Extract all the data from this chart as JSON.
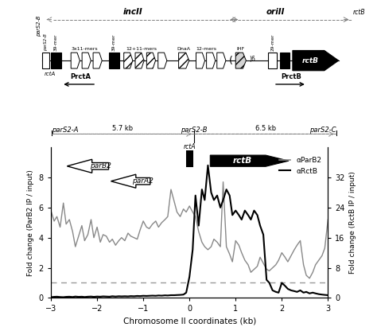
{
  "parb2_color": "#888888",
  "rctb_color": "#000000",
  "xlim": [
    -3,
    3
  ],
  "ylim_left": [
    0,
    10
  ],
  "ylim_right": [
    0,
    40
  ],
  "yticks_left": [
    0,
    2,
    4,
    6,
    8
  ],
  "yticks_right": [
    0,
    8,
    16,
    24,
    32
  ],
  "xlabel": "Chromosome II coordinates (kb)",
  "ylabel_left": "Fold change (ParB2 IP / input)",
  "ylabel_right": "Fold change (RctB IP / input)",
  "legend_parb2": "αParB2",
  "legend_rctb": "αRctB",
  "parb2_x": [
    -3.0,
    -2.93,
    -2.87,
    -2.8,
    -2.73,
    -2.67,
    -2.6,
    -2.53,
    -2.47,
    -2.4,
    -2.33,
    -2.27,
    -2.2,
    -2.13,
    -2.07,
    -2.0,
    -1.93,
    -1.87,
    -1.8,
    -1.73,
    -1.67,
    -1.6,
    -1.53,
    -1.47,
    -1.4,
    -1.33,
    -1.27,
    -1.2,
    -1.13,
    -1.07,
    -1.0,
    -0.93,
    -0.87,
    -0.8,
    -0.73,
    -0.67,
    -0.6,
    -0.53,
    -0.47,
    -0.4,
    -0.33,
    -0.27,
    -0.2,
    -0.13,
    -0.07,
    0.0,
    0.07,
    0.13,
    0.2,
    0.27,
    0.33,
    0.4,
    0.47,
    0.53,
    0.6,
    0.67,
    0.73,
    0.8,
    0.87,
    0.93,
    1.0,
    1.07,
    1.13,
    1.2,
    1.27,
    1.33,
    1.4,
    1.47,
    1.53,
    1.6,
    1.67,
    1.73,
    1.8,
    1.87,
    1.93,
    2.0,
    2.07,
    2.13,
    2.2,
    2.27,
    2.33,
    2.4,
    2.47,
    2.53,
    2.6,
    2.67,
    2.73,
    2.8,
    2.87,
    2.93,
    3.0
  ],
  "parb2_y": [
    5.8,
    5.1,
    5.4,
    4.7,
    6.3,
    4.9,
    5.2,
    4.4,
    3.4,
    4.1,
    4.8,
    3.8,
    4.2,
    5.2,
    4.0,
    4.7,
    3.7,
    4.2,
    4.1,
    3.7,
    3.9,
    3.5,
    3.8,
    4.0,
    3.8,
    4.3,
    4.1,
    4.0,
    3.9,
    4.5,
    5.1,
    4.7,
    4.6,
    4.9,
    5.1,
    4.7,
    5.0,
    5.2,
    5.4,
    7.2,
    6.4,
    5.7,
    5.4,
    5.9,
    5.7,
    6.1,
    5.7,
    5.4,
    4.4,
    3.7,
    3.4,
    3.2,
    3.4,
    3.9,
    3.7,
    3.4,
    7.7,
    3.4,
    2.9,
    2.4,
    3.8,
    3.5,
    3.0,
    2.5,
    2.2,
    1.7,
    1.9,
    2.1,
    2.7,
    2.3,
    1.9,
    1.8,
    2.0,
    2.2,
    2.5,
    3.0,
    2.7,
    2.4,
    2.8,
    3.2,
    3.5,
    3.8,
    2.2,
    1.5,
    1.3,
    1.7,
    2.2,
    2.5,
    2.8,
    3.3,
    5.2
  ],
  "rctb_x": [
    -3.0,
    -2.93,
    -2.87,
    -2.8,
    -2.73,
    -2.67,
    -2.6,
    -2.53,
    -2.47,
    -2.4,
    -2.33,
    -2.27,
    -2.2,
    -2.13,
    -2.07,
    -2.0,
    -1.93,
    -1.87,
    -1.8,
    -1.73,
    -1.67,
    -1.6,
    -1.53,
    -1.47,
    -1.4,
    -1.33,
    -1.27,
    -1.2,
    -1.13,
    -1.07,
    -1.0,
    -0.93,
    -0.87,
    -0.8,
    -0.73,
    -0.67,
    -0.6,
    -0.53,
    -0.47,
    -0.4,
    -0.33,
    -0.27,
    -0.2,
    -0.13,
    -0.07,
    0.0,
    0.07,
    0.13,
    0.2,
    0.27,
    0.33,
    0.4,
    0.47,
    0.53,
    0.6,
    0.67,
    0.73,
    0.8,
    0.87,
    0.93,
    1.0,
    1.07,
    1.13,
    1.2,
    1.27,
    1.33,
    1.4,
    1.47,
    1.53,
    1.6,
    1.67,
    1.73,
    1.8,
    1.87,
    1.93,
    2.0,
    2.07,
    2.13,
    2.2,
    2.27,
    2.33,
    2.4,
    2.47,
    2.53,
    2.6,
    2.67,
    2.73,
    2.8,
    2.87,
    2.93,
    3.0
  ],
  "rctb_y": [
    0.05,
    0.07,
    0.08,
    0.06,
    0.05,
    0.07,
    0.08,
    0.06,
    0.09,
    0.07,
    0.08,
    0.06,
    0.08,
    0.09,
    0.07,
    0.09,
    0.08,
    0.1,
    0.09,
    0.08,
    0.11,
    0.09,
    0.11,
    0.1,
    0.11,
    0.1,
    0.12,
    0.11,
    0.13,
    0.12,
    0.14,
    0.13,
    0.14,
    0.15,
    0.14,
    0.16,
    0.15,
    0.17,
    0.16,
    0.18,
    0.18,
    0.19,
    0.2,
    0.22,
    0.35,
    1.4,
    3.2,
    6.8,
    4.8,
    7.2,
    6.5,
    8.8,
    7.0,
    6.5,
    6.8,
    6.0,
    6.5,
    7.2,
    6.8,
    5.5,
    5.8,
    5.5,
    5.2,
    5.8,
    5.5,
    5.2,
    5.8,
    5.5,
    4.8,
    4.2,
    1.2,
    1.0,
    0.5,
    0.4,
    0.35,
    1.0,
    0.8,
    0.6,
    0.5,
    0.45,
    0.4,
    0.5,
    0.35,
    0.4,
    0.3,
    0.35,
    0.3,
    0.25,
    0.22,
    0.2,
    0.18
  ]
}
